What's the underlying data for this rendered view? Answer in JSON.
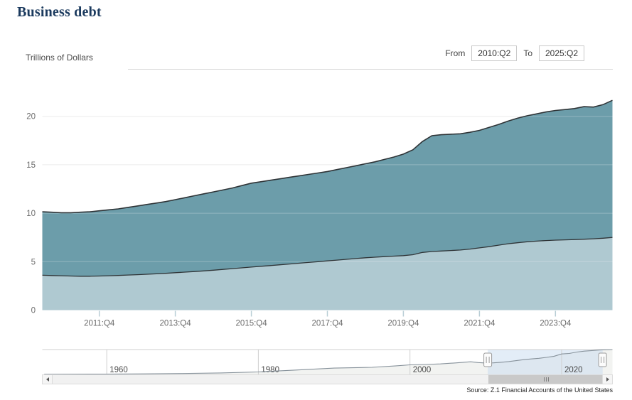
{
  "title": "Business debt",
  "unit_label": "Trillions of Dollars",
  "controls": {
    "from_label": "From",
    "from_value": "2010:Q2",
    "to_label": "To",
    "to_value": "2025:Q2"
  },
  "source": "Source: Z.1 Financial Accounts of the United States",
  "colors": {
    "area_upper": "#6C9DAA",
    "area_lower": "#AFC9D1",
    "series_line": "#2f3437",
    "grid": "#e7e7e7",
    "grid_overlay": "rgba(255,255,255,0.25)",
    "x_tick": "#b9ced6",
    "timeline_curve": "#87929b",
    "timeline_fill": "#f2f3f1",
    "timeline_grid": "#cfcfcf",
    "selection_fill": "rgba(199,220,240,0.5)",
    "handle_border": "#9a9a9a",
    "title_text": "#1b3a5e"
  },
  "chart_data": {
    "type": "area",
    "stacked": true,
    "title": "Business debt",
    "ylabel": "Trillions of Dollars",
    "xlabel": "",
    "ylim": [
      0,
      22.5
    ],
    "yticks": [
      0,
      5,
      10,
      15,
      20
    ],
    "x_start": "2010:Q2",
    "x_end": "2025:Q2",
    "x_frequency": "quarterly",
    "xticks": [
      "2011:Q4",
      "2013:Q4",
      "2015:Q4",
      "2017:Q4",
      "2019:Q4",
      "2021:Q4",
      "2023:Q4"
    ],
    "xtick_indices": [
      6,
      14,
      22,
      30,
      38,
      46,
      54
    ],
    "grid": true,
    "legend": "none",
    "series": [
      {
        "name": "total-business-debt-top-line",
        "values": [
          10.15,
          10.1,
          10.05,
          10.05,
          10.1,
          10.15,
          10.25,
          10.35,
          10.45,
          10.6,
          10.75,
          10.9,
          11.05,
          11.2,
          11.4,
          11.6,
          11.8,
          12.0,
          12.2,
          12.4,
          12.6,
          12.85,
          13.1,
          13.25,
          13.4,
          13.55,
          13.7,
          13.85,
          14.0,
          14.15,
          14.3,
          14.5,
          14.7,
          14.9,
          15.1,
          15.3,
          15.55,
          15.8,
          16.1,
          16.55,
          17.4,
          18.0,
          18.1,
          18.15,
          18.2,
          18.35,
          18.55,
          18.85,
          19.15,
          19.5,
          19.8,
          20.05,
          20.25,
          20.45,
          20.6,
          20.7,
          20.8,
          21.0,
          20.95,
          21.2,
          21.65
        ]
      },
      {
        "name": "lower-component-boundary-line",
        "values": [
          3.6,
          3.57,
          3.55,
          3.52,
          3.5,
          3.5,
          3.52,
          3.55,
          3.58,
          3.62,
          3.66,
          3.7,
          3.75,
          3.8,
          3.86,
          3.92,
          3.98,
          4.05,
          4.12,
          4.2,
          4.28,
          4.36,
          4.44,
          4.52,
          4.6,
          4.68,
          4.76,
          4.84,
          4.92,
          5.0,
          5.08,
          5.16,
          5.24,
          5.32,
          5.4,
          5.46,
          5.52,
          5.57,
          5.62,
          5.72,
          5.95,
          6.05,
          6.1,
          6.15,
          6.2,
          6.3,
          6.42,
          6.55,
          6.7,
          6.85,
          6.95,
          7.05,
          7.12,
          7.18,
          7.22,
          7.25,
          7.28,
          7.32,
          7.36,
          7.42,
          7.5
        ]
      }
    ]
  },
  "timeline": {
    "year_ticks": [
      1960,
      1980,
      2000,
      2020
    ],
    "x_range": [
      1951.5,
      2026.7
    ],
    "vmax": 22,
    "selection": {
      "start_year": 2010.25,
      "end_year": 2025.4
    },
    "series": {
      "years": [
        1951.75,
        1955,
        1960,
        1965,
        1970,
        1975,
        1980,
        1985,
        1990,
        1995,
        1998,
        2000,
        2002,
        2004,
        2006,
        2008,
        2009,
        2010,
        2011,
        2012,
        2013,
        2014,
        2015,
        2016,
        2017,
        2018,
        2019,
        2020,
        2021,
        2022,
        2023,
        2024,
        2025,
        2026.7
      ],
      "values": [
        0.12,
        0.2,
        0.3,
        0.5,
        0.8,
        1.3,
        2.2,
        3.9,
        5.6,
        6.3,
        7.5,
        8.5,
        8.8,
        9.3,
        10.2,
        11.2,
        10.5,
        10.15,
        10.25,
        10.75,
        11.4,
        12.2,
        13.1,
        13.7,
        14.3,
        15.1,
        16.1,
        18.1,
        18.55,
        19.8,
        20.6,
        21.15,
        21.65,
        22.0
      ]
    }
  }
}
